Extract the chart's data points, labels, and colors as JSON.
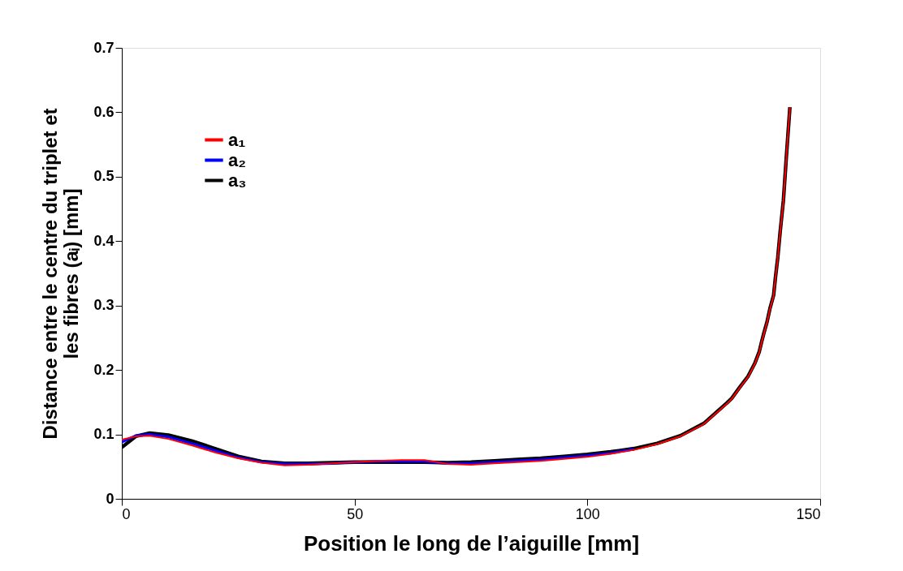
{
  "chart_data": {
    "type": "line",
    "xlabel": "Position le long de l’aiguille [mm]",
    "ylabel": "Distance entre le centre du triplet et\nles fibres (aᵢ) [mm]",
    "xlim": [
      0,
      150
    ],
    "xticks": [
      0,
      50,
      100,
      150
    ],
    "ylim": [
      0,
      0.7
    ],
    "yticks": [
      0,
      0.1,
      0.2,
      0.3,
      0.4,
      0.5,
      0.6,
      0.7
    ],
    "grid": false,
    "legend": "top left",
    "marker": "none",
    "line_style": "solid",
    "x": [
      0,
      3,
      6,
      10,
      15,
      20,
      25,
      30,
      35,
      40,
      45,
      50,
      55,
      60,
      65,
      70,
      75,
      80,
      85,
      90,
      95,
      100,
      105,
      110,
      115,
      120,
      125,
      130,
      131.0,
      132.7,
      134.5,
      136.0,
      136.9,
      137.4,
      137.9,
      138.6,
      139.2,
      140.0,
      140.4,
      140.9,
      141.4,
      142.1,
      142.7,
      143.5
    ],
    "series": [
      {
        "name": "a₁",
        "color": "#ff0000",
        "values": [
          0.092,
          0.097,
          0.098,
          0.093,
          0.083,
          0.072,
          0.063,
          0.056,
          0.052,
          0.053,
          0.055,
          0.057,
          0.059,
          0.06,
          0.06,
          0.054,
          0.053,
          0.055,
          0.057,
          0.059,
          0.062,
          0.065,
          0.07,
          0.076,
          0.085,
          0.097,
          0.116,
          0.148,
          0.155,
          0.172,
          0.189,
          0.21,
          0.227,
          0.242,
          0.256,
          0.274,
          0.294,
          0.315,
          0.343,
          0.374,
          0.413,
          0.462,
          0.526,
          0.608
        ]
      },
      {
        "name": "a₂",
        "color": "#0000ff",
        "values": [
          0.088,
          0.098,
          0.1,
          0.096,
          0.086,
          0.075,
          0.064,
          0.057,
          0.054,
          0.054,
          0.055,
          0.057,
          0.058,
          0.058,
          0.058,
          0.055,
          0.055,
          0.057,
          0.059,
          0.061,
          0.064,
          0.067,
          0.071,
          0.077,
          null,
          null,
          null,
          null,
          null,
          null,
          null,
          null,
          null,
          null,
          null,
          null,
          null,
          null,
          null,
          null,
          null,
          null,
          null,
          null
        ]
      },
      {
        "name": "a₃",
        "color": "#000000",
        "values": [
          0.08,
          0.097,
          0.102,
          0.099,
          0.09,
          0.078,
          0.066,
          0.058,
          0.055,
          0.055,
          0.056,
          0.057,
          0.057,
          0.057,
          0.057,
          0.056,
          0.057,
          0.059,
          0.061,
          0.063,
          0.066,
          0.069,
          0.073,
          0.078,
          0.086,
          0.098,
          0.117,
          0.149,
          0.156,
          0.173,
          0.19,
          0.211,
          0.228,
          0.243,
          0.257,
          0.275,
          0.295,
          0.316,
          0.344,
          0.375,
          0.414,
          0.463,
          0.527,
          0.608
        ]
      }
    ]
  }
}
